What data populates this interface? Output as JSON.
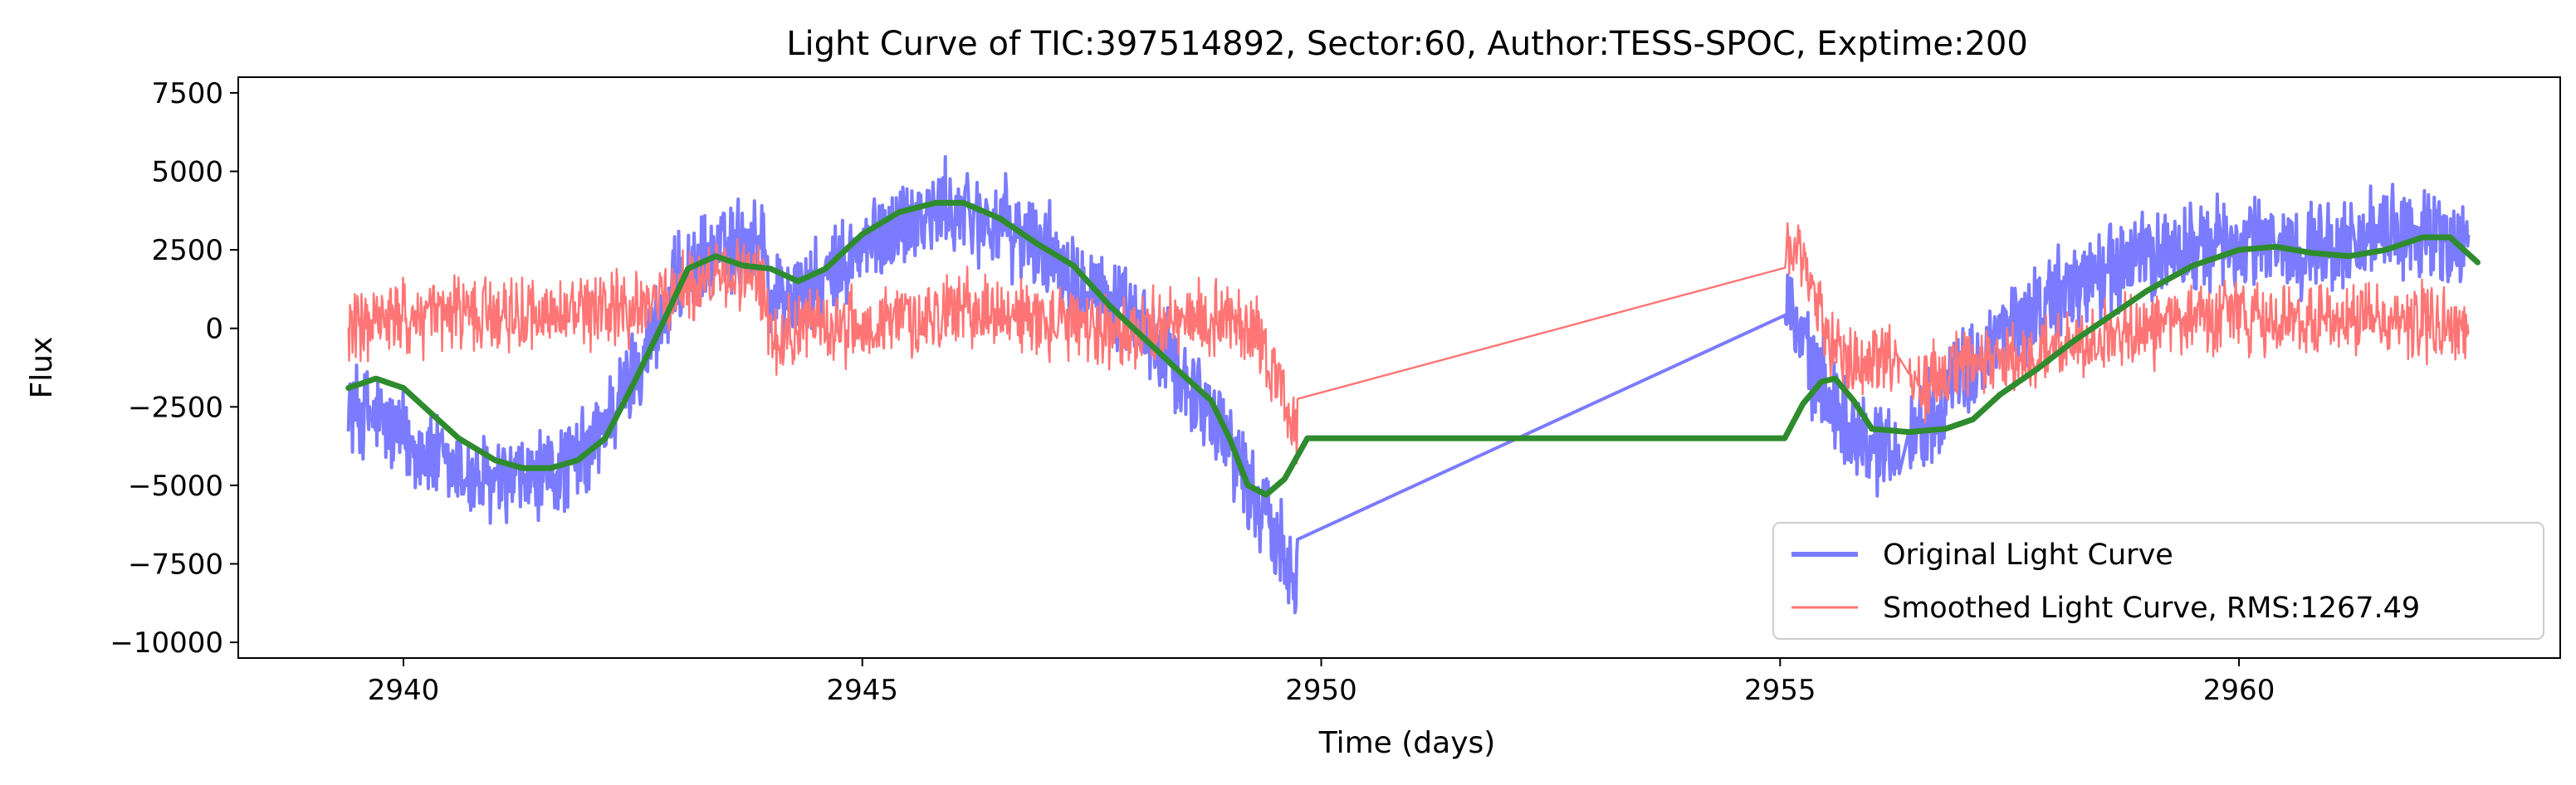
{
  "chart_data": {
    "type": "line",
    "title": "Light Curve of TIC:397514892, Sector:60, Author:TESS-SPOC, Exptime:200",
    "xlabel": "Time (days)",
    "ylabel": "Flux",
    "xlim": [
      2938.2,
      2963.5
    ],
    "ylim": [
      -10500,
      8000
    ],
    "xticks": [
      2940,
      2945,
      2950,
      2955,
      2960
    ],
    "xtick_labels": [
      "2940",
      "2945",
      "2950",
      "2955",
      "2960"
    ],
    "yticks": [
      7500,
      5000,
      2500,
      0,
      -2500,
      -5000,
      -7500,
      -10000
    ],
    "ytick_labels": [
      "7500",
      "5000",
      "2500",
      "0",
      "−2500",
      "−5000",
      "−7500",
      "−10000"
    ],
    "grid": false,
    "legend_position": "lower-right",
    "series": [
      {
        "name": "Original Light Curve",
        "color": "#7b7bff",
        "noise_amplitude": 1600,
        "gaps": [
          [
            2949.75,
            2955.05
          ],
          [
            2956.3,
            2956.4
          ]
        ],
        "x": [
          2939.4,
          2939.7,
          2940.0,
          2940.5,
          2941.0,
          2941.5,
          2942.0,
          2942.5,
          2943.0,
          2943.5,
          2943.9,
          2944.0,
          2944.5,
          2945.0,
          2945.5,
          2946.0,
          2946.5,
          2947.0,
          2947.5,
          2948.0,
          2948.5,
          2949.0,
          2949.3,
          2949.7,
          2955.05,
          2955.3,
          2955.6,
          2955.9,
          2956.2,
          2956.5,
          2957.0,
          2957.5,
          2958.0,
          2958.5,
          2959.0,
          2959.5,
          2960.0,
          2960.5,
          2961.0,
          2961.5,
          2962.0,
          2962.5
        ],
        "y": [
          -2500,
          -2800,
          -3500,
          -4500,
          -5000,
          -4800,
          -4000,
          -1500,
          1500,
          2500,
          3000,
          1000,
          1200,
          2500,
          3500,
          3800,
          3300,
          2500,
          1500,
          0,
          -1500,
          -3500,
          -5500,
          -7500,
          1200,
          -1000,
          -2500,
          -3500,
          -3800,
          -3200,
          -1500,
          0,
          1000,
          1800,
          2300,
          2600,
          2700,
          2600,
          2600,
          2900,
          3100,
          2500
        ]
      },
      {
        "name": "Smoothed Light Curve, RMS:1267.49",
        "color": "#ff7575",
        "noise_amplitude": 1300,
        "gaps": [
          [
            2949.75,
            2955.05
          ],
          [
            2956.3,
            2956.4
          ]
        ],
        "x": [
          2939.4,
          2940.0,
          2941.0,
          2942.0,
          2942.5,
          2943.0,
          2943.5,
          2943.9,
          2944.0,
          2944.5,
          2945.0,
          2945.5,
          2946.0,
          2946.5,
          2947.0,
          2947.5,
          2948.0,
          2948.5,
          2949.0,
          2949.3,
          2949.7,
          2955.05,
          2955.3,
          2955.6,
          2955.9,
          2956.2,
          2956.5,
          2957.0,
          2958.0,
          2959.0,
          2960.0,
          2961.0,
          2962.0,
          2962.5
        ],
        "y": [
          0,
          300,
          500,
          400,
          600,
          1200,
          1800,
          1500,
          -200,
          200,
          0,
          300,
          600,
          500,
          200,
          0,
          -100,
          200,
          400,
          0,
          -3200,
          3000,
          1500,
          -500,
          -1200,
          -700,
          -1800,
          -1300,
          -700,
          0,
          300,
          300,
          300,
          -300
        ]
      },
      {
        "name": "",
        "color": "#2e8b2e",
        "x": [
          2939.4,
          2939.7,
          2940.0,
          2940.3,
          2940.6,
          2941.0,
          2941.3,
          2941.6,
          2941.9,
          2942.2,
          2942.5,
          2942.8,
          2943.1,
          2943.4,
          2943.7,
          2944.0,
          2944.3,
          2944.6,
          2945.0,
          2945.4,
          2945.8,
          2946.1,
          2946.5,
          2946.9,
          2947.3,
          2947.7,
          2948.1,
          2948.5,
          2948.8,
          2949.0,
          2949.2,
          2949.4,
          2949.6,
          2949.85,
          2955.05,
          2955.25,
          2955.45,
          2955.6,
          2955.8,
          2956.0,
          2956.4,
          2956.8,
          2957.1,
          2957.4,
          2957.8,
          2958.2,
          2958.6,
          2959.0,
          2959.5,
          2960.0,
          2960.4,
          2960.8,
          2961.2,
          2961.6,
          2962.0,
          2962.3,
          2962.6
        ],
        "y": [
          -1900,
          -1600,
          -1900,
          -2700,
          -3500,
          -4200,
          -4450,
          -4450,
          -4200,
          -3500,
          -1800,
          0,
          1900,
          2300,
          2000,
          1900,
          1500,
          1900,
          3000,
          3700,
          4000,
          4000,
          3500,
          2700,
          2000,
          700,
          -400,
          -1500,
          -2300,
          -3500,
          -5000,
          -5300,
          -4800,
          -3500,
          -3500,
          -2400,
          -1700,
          -1600,
          -2300,
          -3200,
          -3300,
          -3200,
          -2900,
          -2100,
          -1300,
          -400,
          400,
          1200,
          2000,
          2500,
          2600,
          2400,
          2300,
          2500,
          2900,
          2900,
          2100
        ]
      }
    ]
  }
}
